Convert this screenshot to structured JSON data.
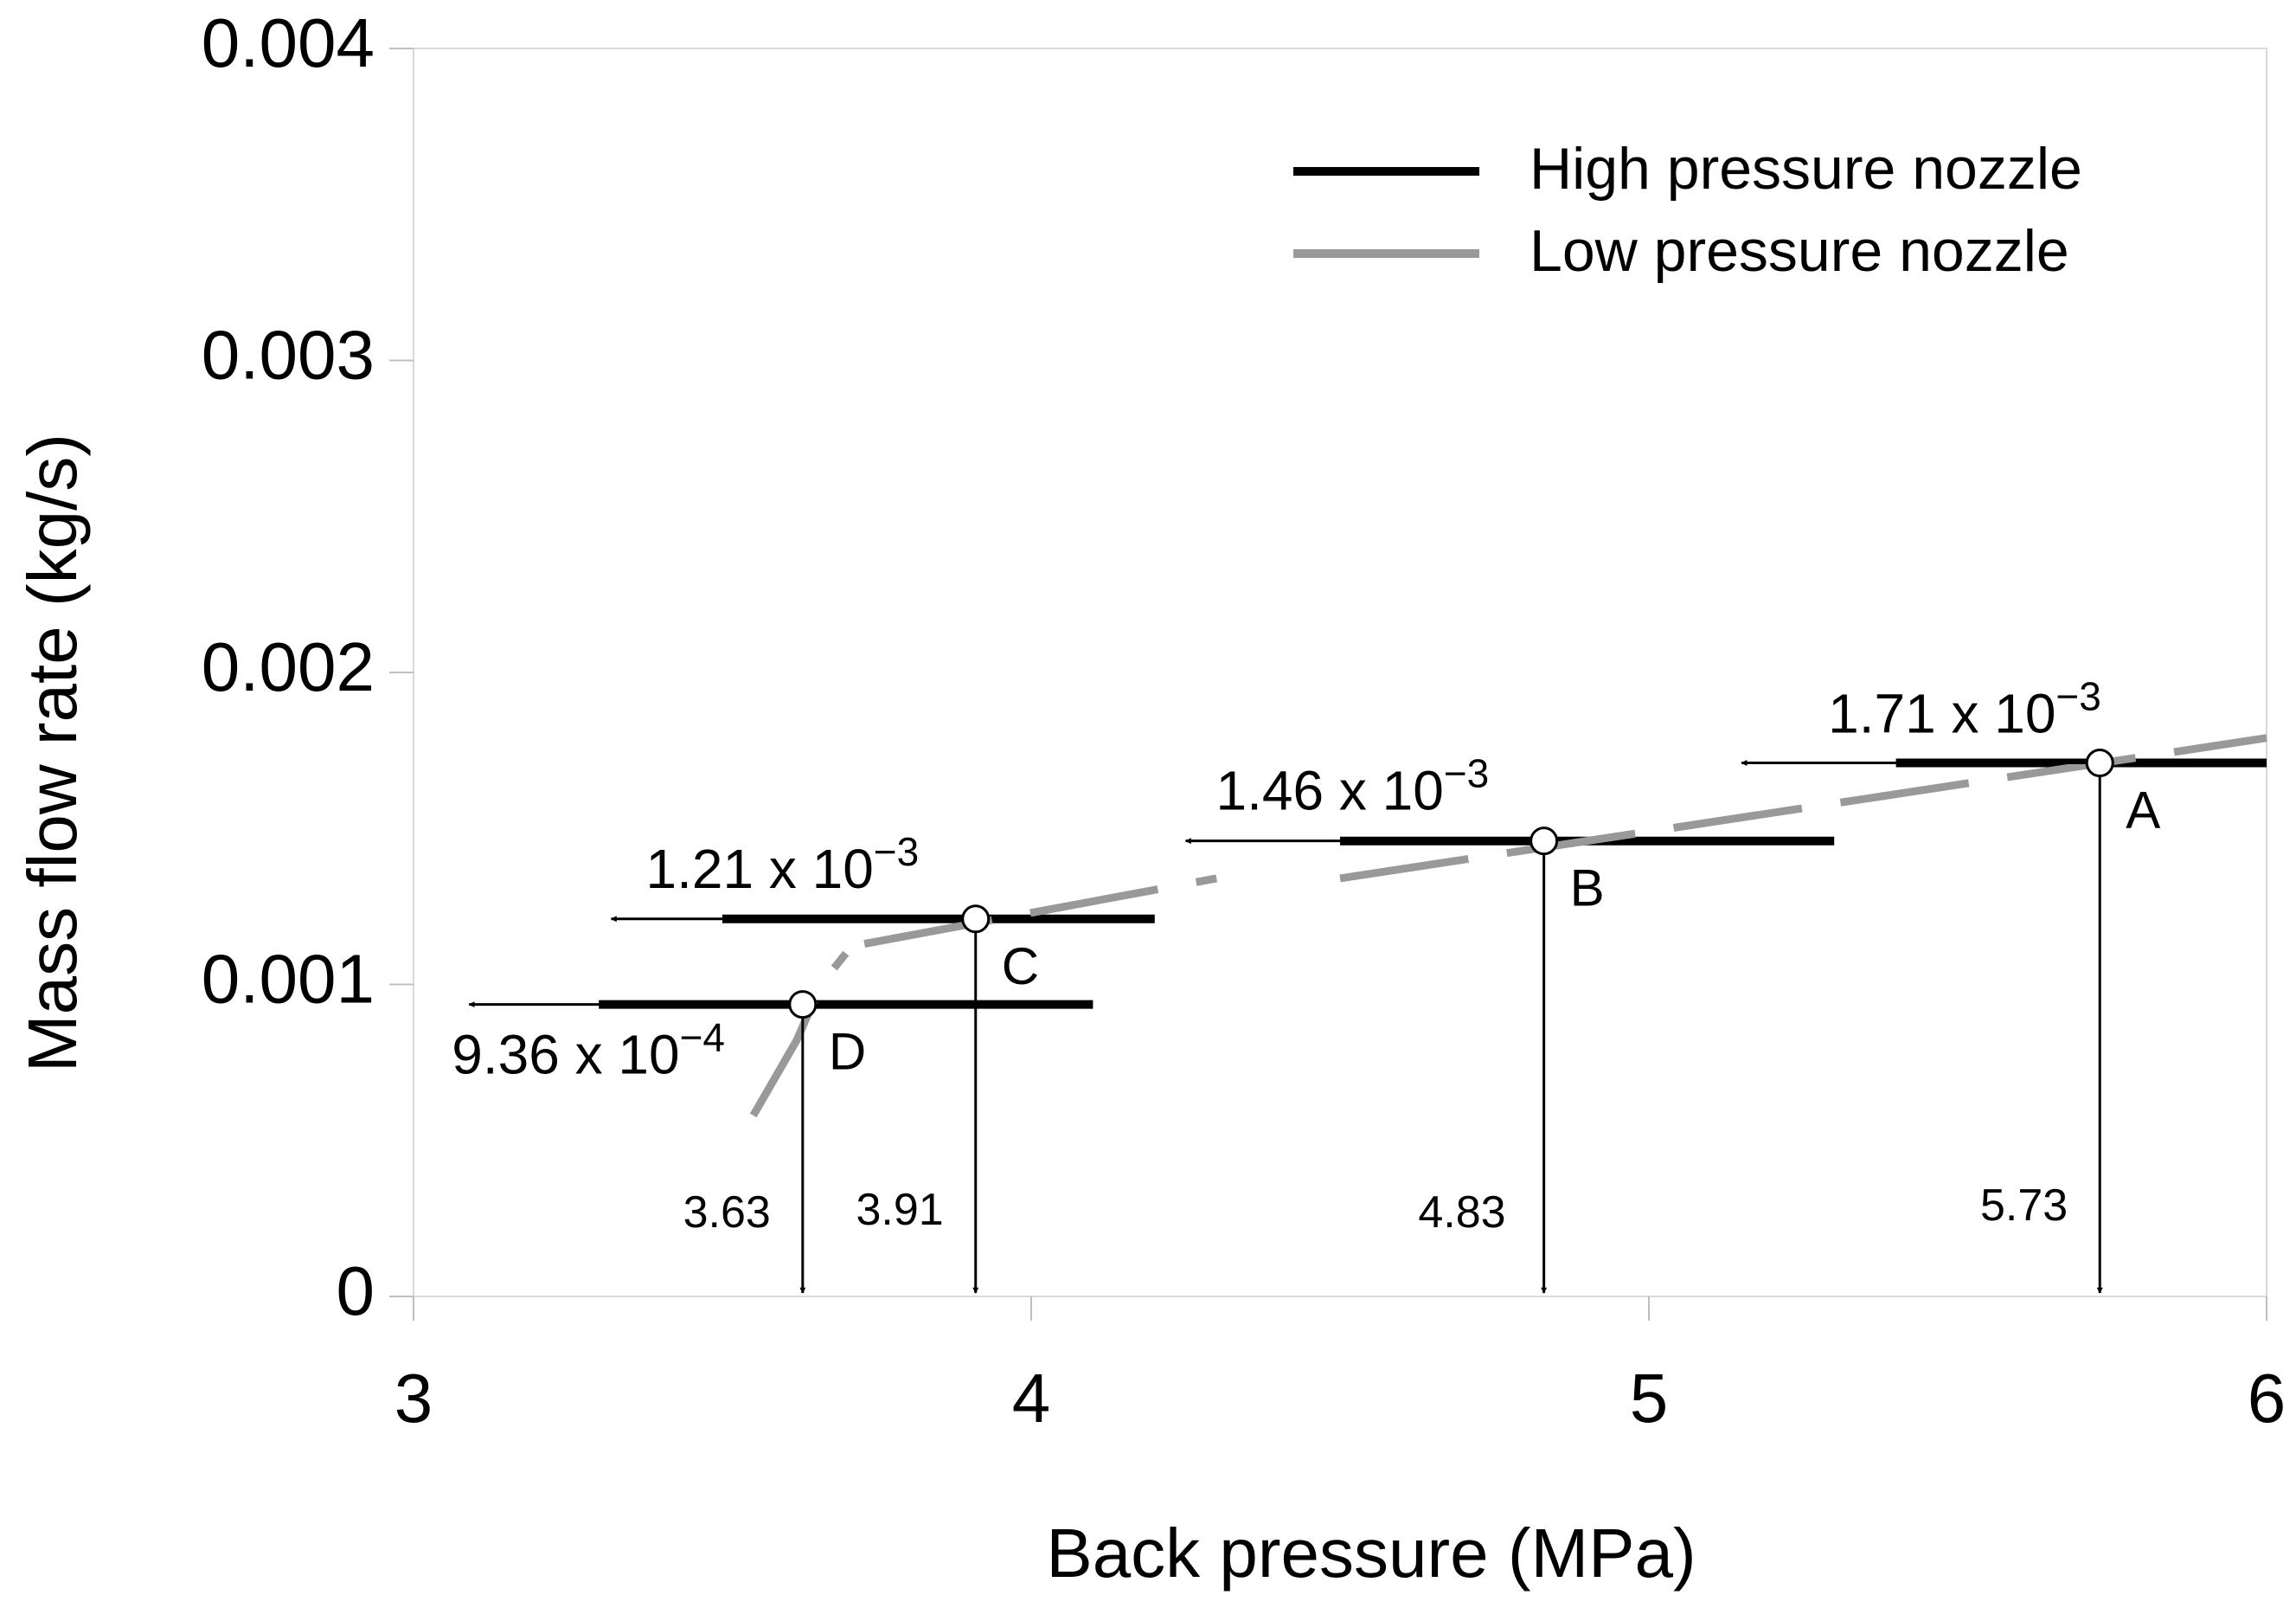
{
  "chart_data": {
    "type": "line",
    "xlabel": "Back pressure (MPa)",
    "ylabel": "Mass flow rate (kg/s)",
    "xlim": [
      3,
      6
    ],
    "ylim": [
      0,
      0.004
    ],
    "x_ticks": [
      {
        "value": 3,
        "label": "3"
      },
      {
        "value": 4,
        "label": "4"
      },
      {
        "value": 5,
        "label": "5"
      },
      {
        "value": 6,
        "label": "6"
      }
    ],
    "y_ticks": [
      {
        "value": 0,
        "label": "0"
      },
      {
        "value": 0.001,
        "label": "0.001"
      },
      {
        "value": 0.002,
        "label": "0.002"
      },
      {
        "value": 0.003,
        "label": "0.003"
      },
      {
        "value": 0.004,
        "label": "0.004"
      }
    ],
    "grid": false,
    "legend_position": "top-right",
    "series": [
      {
        "name": "High pressure nozzle",
        "color": "#000000",
        "style": "solid",
        "segments": [
          {
            "x": [
              5.4,
              6.0
            ],
            "y": [
              0.00171,
              0.00171
            ]
          },
          {
            "x": [
              4.5,
              5.3
            ],
            "y": [
              0.00146,
              0.00146
            ]
          },
          {
            "x": [
              3.5,
              4.2
            ],
            "y": [
              0.00121,
              0.00121
            ]
          },
          {
            "x": [
              3.3,
              4.1
            ],
            "y": [
              0.000936,
              0.000936
            ]
          }
        ]
      },
      {
        "name": "Low pressure nozzle",
        "color": "#999999",
        "style": "long-dash",
        "segments": [
          {
            "x": [
              4.5,
              6.0
            ],
            "y": [
              0.00134,
              0.00179
            ]
          },
          {
            "x": [
              3.73,
              4.3
            ],
            "y": [
              0.00113,
              0.00134
            ]
          },
          {
            "x": [
              3.55,
              3.62,
              3.66,
              3.7
            ],
            "y": [
              0.00058,
              0.00082,
              0.001,
              0.0011
            ]
          }
        ]
      }
    ],
    "operating_points": [
      {
        "label": "A",
        "pressure": 5.73,
        "pressure_label": "5.73",
        "flow": 0.00171,
        "flow_label": "1.71 x 10",
        "flow_exp": "−3",
        "arrow_to_x": 5.15
      },
      {
        "label": "B",
        "pressure": 4.83,
        "pressure_label": "4.83",
        "flow": 0.00146,
        "flow_label": "1.46 x 10",
        "flow_exp": "−3",
        "arrow_to_x": 4.25
      },
      {
        "label": "C",
        "pressure": 3.91,
        "pressure_label": "3.91",
        "flow": 0.00121,
        "flow_label": "1.21 x 10",
        "flow_exp": "−3",
        "arrow_to_x": 3.32
      },
      {
        "label": "D",
        "pressure": 3.63,
        "pressure_label": "3.63",
        "flow": 0.000936,
        "flow_label": "9.36 x 10",
        "flow_exp": "−4",
        "arrow_to_x": 3.09
      }
    ]
  }
}
